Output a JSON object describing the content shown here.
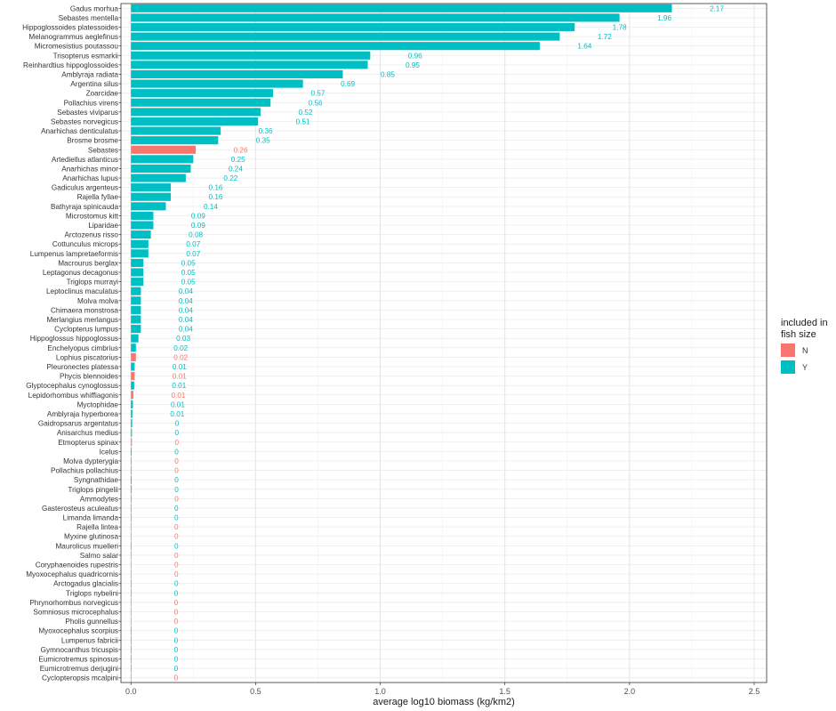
{
  "chart_data": {
    "type": "bar",
    "orientation": "horizontal",
    "xlabel": "average log10 biomass (kg/km2)",
    "ylabel": "",
    "xlim": [
      -0.04,
      2.55
    ],
    "xticks": [
      0.0,
      0.5,
      1.0,
      1.5,
      2.0,
      2.5
    ],
    "xtick_labels": [
      "0.0",
      "0.5",
      "1.0",
      "1.5",
      "2.0",
      "2.5"
    ],
    "grid": true,
    "legend": {
      "title": "included in fish size",
      "placement": "right",
      "entries": [
        {
          "label": "N",
          "color": "#F8766D"
        },
        {
          "label": "Y",
          "color": "#00BFC4"
        }
      ]
    },
    "label_text_offset": 0.18,
    "bars": [
      {
        "category": "Gadus morhua",
        "value": 2.17,
        "label": "2.17",
        "group": "Y"
      },
      {
        "category": "Sebastes mentella",
        "value": 1.96,
        "label": "1.96",
        "group": "Y"
      },
      {
        "category": "Hippoglossoides platessoides",
        "value": 1.78,
        "label": "1.78",
        "group": "Y"
      },
      {
        "category": "Melanogrammus aeglefinus",
        "value": 1.72,
        "label": "1.72",
        "group": "Y"
      },
      {
        "category": "Micromesistius poutassou",
        "value": 1.64,
        "label": "1.64",
        "group": "Y"
      },
      {
        "category": "Trisopterus esmarkii",
        "value": 0.96,
        "label": "0.96",
        "group": "Y"
      },
      {
        "category": "Reinhardtius hippoglossoides",
        "value": 0.95,
        "label": "0.95",
        "group": "Y"
      },
      {
        "category": "Amblyraja radiata",
        "value": 0.85,
        "label": "0.85",
        "group": "Y"
      },
      {
        "category": "Argentina silus",
        "value": 0.69,
        "label": "0.69",
        "group": "Y"
      },
      {
        "category": "Zoarcidae",
        "value": 0.57,
        "label": "0.57",
        "group": "Y"
      },
      {
        "category": "Pollachius virens",
        "value": 0.56,
        "label": "0.56",
        "group": "Y"
      },
      {
        "category": "Sebastes viviparus",
        "value": 0.52,
        "label": "0.52",
        "group": "Y"
      },
      {
        "category": "Sebastes norvegicus",
        "value": 0.51,
        "label": "0.51",
        "group": "Y"
      },
      {
        "category": "Anarhichas denticulatus",
        "value": 0.36,
        "label": "0.36",
        "group": "Y"
      },
      {
        "category": "Brosme brosme",
        "value": 0.35,
        "label": "0.35",
        "group": "Y"
      },
      {
        "category": "Sebastes",
        "value": 0.26,
        "label": "0.26",
        "group": "N"
      },
      {
        "category": "Artediellus atlanticus",
        "value": 0.25,
        "label": "0.25",
        "group": "Y"
      },
      {
        "category": "Anarhichas minor",
        "value": 0.24,
        "label": "0.24",
        "group": "Y"
      },
      {
        "category": "Anarhichas lupus",
        "value": 0.22,
        "label": "0.22",
        "group": "Y"
      },
      {
        "category": "Gadiculus argenteus",
        "value": 0.16,
        "label": "0.16",
        "group": "Y"
      },
      {
        "category": "Rajella fyllae",
        "value": 0.16,
        "label": "0.16",
        "group": "Y"
      },
      {
        "category": "Bathyraja spinicauda",
        "value": 0.14,
        "label": "0.14",
        "group": "Y"
      },
      {
        "category": "Microstomus kitt",
        "value": 0.09,
        "label": "0.09",
        "group": "Y"
      },
      {
        "category": "Liparidae",
        "value": 0.09,
        "label": "0.09",
        "group": "Y"
      },
      {
        "category": "Arctozenus risso",
        "value": 0.08,
        "label": "0.08",
        "group": "Y"
      },
      {
        "category": "Cottunculus microps",
        "value": 0.07,
        "label": "0.07",
        "group": "Y"
      },
      {
        "category": "Lumpenus lampretaeformis",
        "value": 0.07,
        "label": "0.07",
        "group": "Y"
      },
      {
        "category": "Macrourus berglax",
        "value": 0.05,
        "label": "0.05",
        "group": "Y"
      },
      {
        "category": "Leptagonus decagonus",
        "value": 0.05,
        "label": "0.05",
        "group": "Y"
      },
      {
        "category": "Triglops murrayi",
        "value": 0.05,
        "label": "0.05",
        "group": "Y"
      },
      {
        "category": "Leptoclinus maculatus",
        "value": 0.04,
        "label": "0.04",
        "group": "Y"
      },
      {
        "category": "Molva molva",
        "value": 0.04,
        "label": "0.04",
        "group": "Y"
      },
      {
        "category": "Chimaera monstrosa",
        "value": 0.04,
        "label": "0.04",
        "group": "Y"
      },
      {
        "category": "Merlangius merlangus",
        "value": 0.04,
        "label": "0.04",
        "group": "Y"
      },
      {
        "category": "Cyclopterus lumpus",
        "value": 0.04,
        "label": "0.04",
        "group": "Y"
      },
      {
        "category": "Hippoglossus hippoglossus",
        "value": 0.03,
        "label": "0.03",
        "group": "Y"
      },
      {
        "category": "Enchelyopus cimbrius",
        "value": 0.02,
        "label": "0.02",
        "group": "Y"
      },
      {
        "category": "Lophius piscatorius",
        "value": 0.02,
        "label": "0.02",
        "group": "N"
      },
      {
        "category": "Pleuronectes platessa",
        "value": 0.015,
        "label": "0.01",
        "group": "Y"
      },
      {
        "category": "Phycis blennoides",
        "value": 0.015,
        "label": "0.01",
        "group": "N"
      },
      {
        "category": "Glyptocephalus cynoglossus",
        "value": 0.013,
        "label": "0.01",
        "group": "Y"
      },
      {
        "category": "Lepidorhombus whiffiagonis",
        "value": 0.01,
        "label": "0.01",
        "group": "N"
      },
      {
        "category": "Myctophidae",
        "value": 0.008,
        "label": "0.01",
        "group": "Y"
      },
      {
        "category": "Amblyraja hyperborea",
        "value": 0.006,
        "label": "0.01",
        "group": "Y"
      },
      {
        "category": "Gaidropsarus argentatus",
        "value": 0.005,
        "label": "0",
        "group": "Y"
      },
      {
        "category": "Anisarchus medius",
        "value": 0.004,
        "label": "0",
        "group": "Y"
      },
      {
        "category": "Etmopterus spinax",
        "value": 0.004,
        "label": "0",
        "group": "N"
      },
      {
        "category": "Icelus",
        "value": 0.003,
        "label": "0",
        "group": "Y"
      },
      {
        "category": "Molva dypterygia",
        "value": 0.003,
        "label": "0",
        "group": "N"
      },
      {
        "category": "Pollachius pollachius",
        "value": 0.003,
        "label": "0",
        "group": "N"
      },
      {
        "category": "Syngnathidae",
        "value": 0.003,
        "label": "0",
        "group": "Y"
      },
      {
        "category": "Triglops pingelii",
        "value": 0.003,
        "label": "0",
        "group": "Y"
      },
      {
        "category": "Ammodytes",
        "value": 0.003,
        "label": "0",
        "group": "N"
      },
      {
        "category": "Gasterosteus aculeatus",
        "value": 0.002,
        "label": "0",
        "group": "Y"
      },
      {
        "category": "Limanda limanda",
        "value": 0.002,
        "label": "0",
        "group": "Y"
      },
      {
        "category": "Rajella lintea",
        "value": 0.002,
        "label": "0",
        "group": "N"
      },
      {
        "category": "Myxine glutinosa",
        "value": 0.002,
        "label": "0",
        "group": "N"
      },
      {
        "category": "Maurolicus muelleri",
        "value": 0.002,
        "label": "0",
        "group": "Y"
      },
      {
        "category": "Salmo salar",
        "value": 0.002,
        "label": "0",
        "group": "N"
      },
      {
        "category": "Coryphaenoides rupestris",
        "value": 0.002,
        "label": "0",
        "group": "N"
      },
      {
        "category": "Myoxocephalus quadricornis",
        "value": 0.002,
        "label": "0",
        "group": "N"
      },
      {
        "category": "Arctogadus glacialis",
        "value": 0.002,
        "label": "0",
        "group": "Y"
      },
      {
        "category": "Triglops nybelini",
        "value": 0.001,
        "label": "0",
        "group": "Y"
      },
      {
        "category": "Phrynorhombus norvegicus",
        "value": 0.001,
        "label": "0",
        "group": "N"
      },
      {
        "category": "Somniosus microcephalus",
        "value": 0.001,
        "label": "0",
        "group": "N"
      },
      {
        "category": "Pholis gunnellus",
        "value": 0.001,
        "label": "0",
        "group": "N"
      },
      {
        "category": "Myoxocephalus scorpius",
        "value": 0.001,
        "label": "0",
        "group": "Y"
      },
      {
        "category": "Lumpenus fabricii",
        "value": 0.001,
        "label": "0",
        "group": "Y"
      },
      {
        "category": "Gymnocanthus tricuspis",
        "value": 0.001,
        "label": "0",
        "group": "Y"
      },
      {
        "category": "Eumicrotremus spinosus",
        "value": 0.001,
        "label": "0",
        "group": "Y"
      },
      {
        "category": "Eumicrotremus derjugini",
        "value": 0.001,
        "label": "0",
        "group": "Y"
      },
      {
        "category": "Cyclopteropsis mcalpini",
        "value": 0.001,
        "label": "0",
        "group": "N"
      }
    ]
  }
}
